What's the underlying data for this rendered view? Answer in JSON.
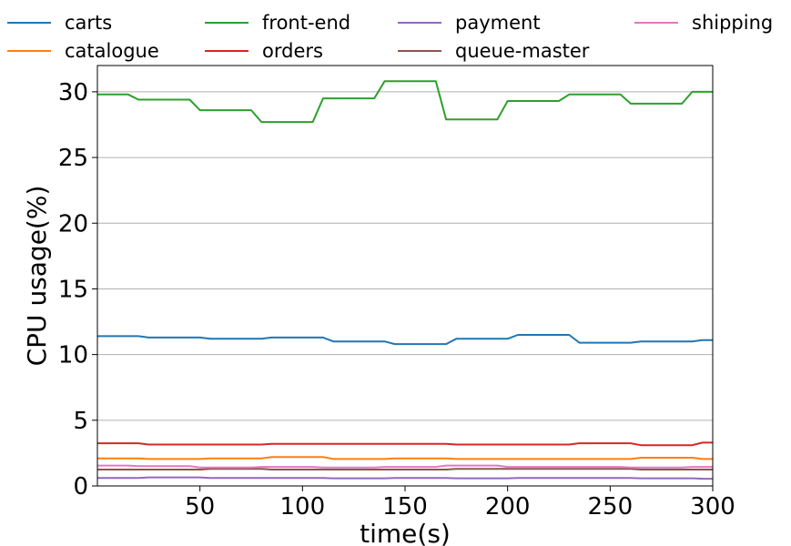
{
  "chart_data": {
    "type": "line",
    "xlabel": "time(s)",
    "ylabel": "CPU usage(%)",
    "xlim": [
      0,
      300
    ],
    "ylim": [
      0,
      32
    ],
    "xticks": [
      50,
      100,
      150,
      200,
      250,
      300
    ],
    "yticks": [
      0,
      5,
      10,
      15,
      20,
      25,
      30
    ],
    "grid": "y",
    "legend_position": "top, 4 columns",
    "x": [
      0,
      5,
      10,
      15,
      20,
      25,
      30,
      35,
      40,
      45,
      50,
      55,
      60,
      65,
      70,
      75,
      80,
      85,
      90,
      95,
      100,
      105,
      110,
      115,
      120,
      125,
      130,
      135,
      140,
      145,
      150,
      155,
      160,
      165,
      170,
      175,
      180,
      185,
      190,
      195,
      200,
      205,
      210,
      215,
      220,
      225,
      230,
      235,
      240,
      245,
      250,
      255,
      260,
      265,
      270,
      275,
      280,
      285,
      290,
      295,
      300
    ],
    "series": [
      {
        "name": "carts",
        "color": "#1f77b4",
        "values": [
          11.4,
          11.4,
          11.4,
          11.4,
          11.4,
          11.3,
          11.3,
          11.3,
          11.3,
          11.3,
          11.3,
          11.2,
          11.2,
          11.2,
          11.2,
          11.2,
          11.2,
          11.3,
          11.3,
          11.3,
          11.3,
          11.3,
          11.3,
          11.0,
          11.0,
          11.0,
          11.0,
          11.0,
          11.0,
          10.8,
          10.8,
          10.8,
          10.8,
          10.8,
          10.8,
          11.2,
          11.2,
          11.2,
          11.2,
          11.2,
          11.2,
          11.5,
          11.5,
          11.5,
          11.5,
          11.5,
          11.5,
          10.9,
          10.9,
          10.9,
          10.9,
          10.9,
          10.9,
          11.0,
          11.0,
          11.0,
          11.0,
          11.0,
          11.0,
          11.1,
          11.1
        ]
      },
      {
        "name": "catalogue",
        "color": "#ff7f0e",
        "values": [
          2.1,
          2.1,
          2.1,
          2.1,
          2.1,
          2.05,
          2.05,
          2.05,
          2.05,
          2.05,
          2.05,
          2.1,
          2.1,
          2.1,
          2.1,
          2.1,
          2.1,
          2.2,
          2.2,
          2.2,
          2.2,
          2.2,
          2.2,
          2.05,
          2.05,
          2.05,
          2.05,
          2.05,
          2.05,
          2.1,
          2.1,
          2.1,
          2.1,
          2.1,
          2.1,
          2.05,
          2.05,
          2.05,
          2.05,
          2.05,
          2.05,
          2.05,
          2.05,
          2.05,
          2.05,
          2.05,
          2.05,
          2.05,
          2.05,
          2.05,
          2.05,
          2.05,
          2.05,
          2.15,
          2.15,
          2.15,
          2.15,
          2.15,
          2.15,
          2.05,
          2.05
        ]
      },
      {
        "name": "front-end",
        "color": "#2ca02c",
        "values": [
          29.8,
          29.8,
          29.8,
          29.8,
          29.4,
          29.4,
          29.4,
          29.4,
          29.4,
          29.4,
          28.6,
          28.6,
          28.6,
          28.6,
          28.6,
          28.6,
          27.7,
          27.7,
          27.7,
          27.7,
          27.7,
          27.7,
          29.5,
          29.5,
          29.5,
          29.5,
          29.5,
          29.5,
          30.8,
          30.8,
          30.8,
          30.8,
          30.8,
          30.8,
          27.9,
          27.9,
          27.9,
          27.9,
          27.9,
          27.9,
          29.3,
          29.3,
          29.3,
          29.3,
          29.3,
          29.3,
          29.8,
          29.8,
          29.8,
          29.8,
          29.8,
          29.8,
          29.1,
          29.1,
          29.1,
          29.1,
          29.1,
          29.1,
          30.0,
          30.0,
          30.0
        ]
      },
      {
        "name": "orders",
        "color": "#d62728",
        "values": [
          3.25,
          3.25,
          3.25,
          3.25,
          3.25,
          3.15,
          3.15,
          3.15,
          3.15,
          3.15,
          3.15,
          3.15,
          3.15,
          3.15,
          3.15,
          3.15,
          3.15,
          3.2,
          3.2,
          3.2,
          3.2,
          3.2,
          3.2,
          3.2,
          3.2,
          3.2,
          3.2,
          3.2,
          3.2,
          3.2,
          3.2,
          3.2,
          3.2,
          3.2,
          3.2,
          3.15,
          3.15,
          3.15,
          3.15,
          3.15,
          3.15,
          3.15,
          3.15,
          3.15,
          3.15,
          3.15,
          3.15,
          3.25,
          3.25,
          3.25,
          3.25,
          3.25,
          3.25,
          3.1,
          3.1,
          3.1,
          3.1,
          3.1,
          3.1,
          3.3,
          3.3
        ]
      },
      {
        "name": "payment",
        "color": "#9467bd",
        "values": [
          0.6,
          0.6,
          0.6,
          0.6,
          0.6,
          0.65,
          0.65,
          0.65,
          0.65,
          0.65,
          0.65,
          0.6,
          0.6,
          0.6,
          0.6,
          0.6,
          0.6,
          0.6,
          0.6,
          0.6,
          0.6,
          0.6,
          0.6,
          0.58,
          0.58,
          0.58,
          0.58,
          0.58,
          0.58,
          0.6,
          0.6,
          0.6,
          0.6,
          0.6,
          0.6,
          0.58,
          0.58,
          0.58,
          0.58,
          0.58,
          0.58,
          0.6,
          0.6,
          0.6,
          0.6,
          0.6,
          0.6,
          0.6,
          0.6,
          0.6,
          0.6,
          0.6,
          0.6,
          0.58,
          0.58,
          0.58,
          0.58,
          0.58,
          0.58,
          0.55,
          0.55
        ]
      },
      {
        "name": "queue-master",
        "color": "#8c564b",
        "values": [
          1.25,
          1.25,
          1.25,
          1.25,
          1.25,
          1.25,
          1.25,
          1.25,
          1.25,
          1.25,
          1.25,
          1.3,
          1.3,
          1.3,
          1.3,
          1.3,
          1.3,
          1.25,
          1.25,
          1.25,
          1.25,
          1.25,
          1.25,
          1.25,
          1.25,
          1.25,
          1.25,
          1.25,
          1.25,
          1.25,
          1.25,
          1.25,
          1.25,
          1.25,
          1.25,
          1.3,
          1.3,
          1.3,
          1.3,
          1.3,
          1.3,
          1.3,
          1.3,
          1.3,
          1.3,
          1.3,
          1.3,
          1.3,
          1.3,
          1.3,
          1.3,
          1.3,
          1.3,
          1.25,
          1.25,
          1.25,
          1.25,
          1.25,
          1.25,
          1.25,
          1.25
        ]
      },
      {
        "name": "shipping",
        "color": "#e377c2",
        "values": [
          1.55,
          1.55,
          1.55,
          1.55,
          1.5,
          1.5,
          1.5,
          1.5,
          1.5,
          1.5,
          1.4,
          1.4,
          1.4,
          1.4,
          1.4,
          1.4,
          1.45,
          1.45,
          1.45,
          1.45,
          1.45,
          1.45,
          1.4,
          1.4,
          1.4,
          1.4,
          1.4,
          1.4,
          1.45,
          1.45,
          1.45,
          1.45,
          1.45,
          1.45,
          1.55,
          1.55,
          1.55,
          1.55,
          1.55,
          1.55,
          1.45,
          1.45,
          1.45,
          1.45,
          1.45,
          1.45,
          1.45,
          1.45,
          1.45,
          1.45,
          1.45,
          1.45,
          1.4,
          1.4,
          1.4,
          1.4,
          1.4,
          1.4,
          1.45,
          1.45,
          1.45
        ]
      }
    ]
  }
}
